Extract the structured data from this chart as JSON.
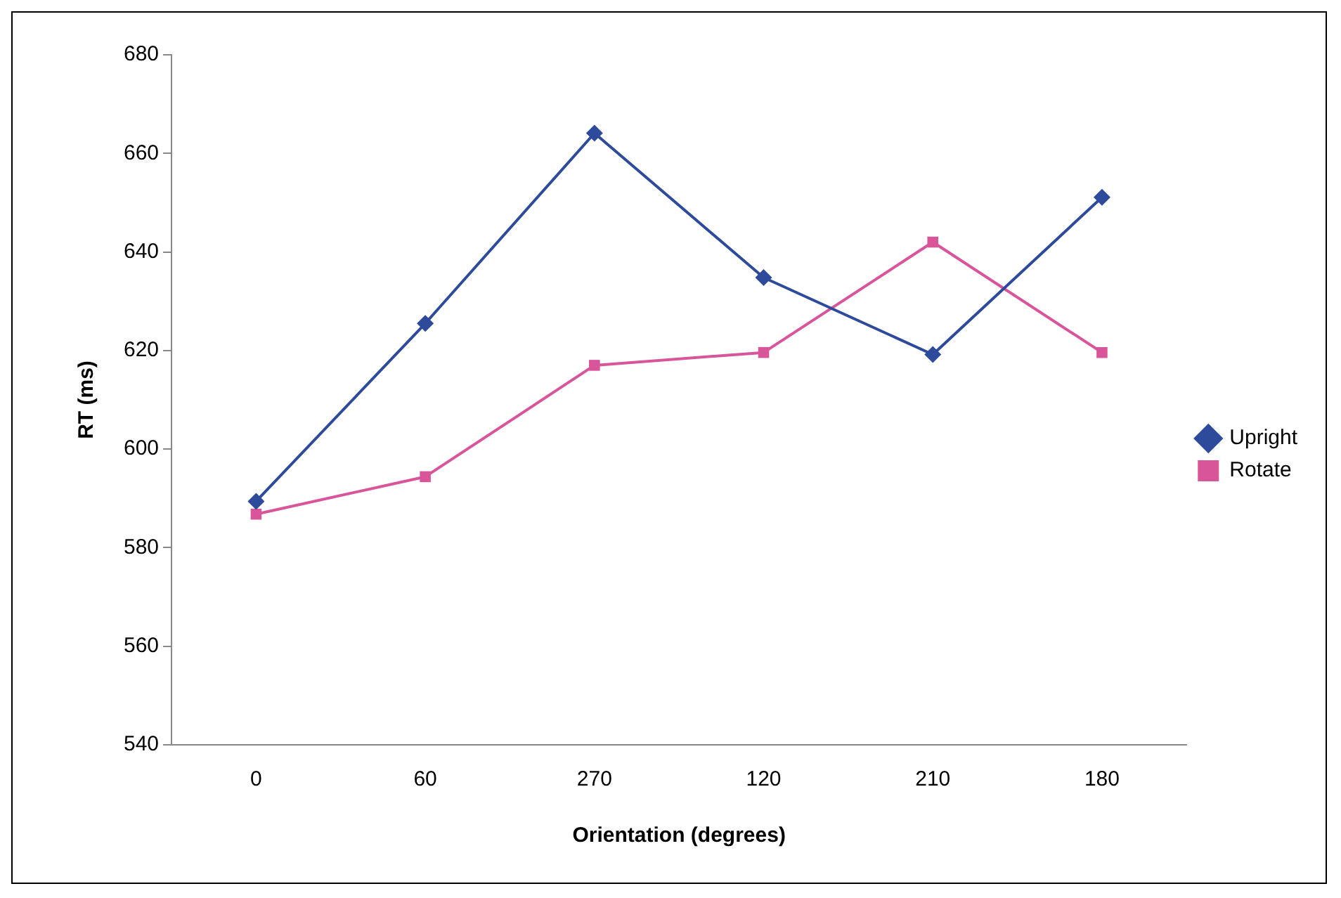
{
  "chart_data": {
    "type": "line",
    "xlabel": "Orientation (degrees)",
    "ylabel": "RT (ms)",
    "categories": [
      "0",
      "60",
      "270",
      "120",
      "210",
      "180"
    ],
    "series": [
      {
        "name": "Upright",
        "color": "#2e4a9a",
        "marker": "diamond",
        "values": [
          589.4,
          625.5,
          664.1,
          634.8,
          619.2,
          651.1
        ]
      },
      {
        "name": "Rotate",
        "color": "#d9559a",
        "marker": "square",
        "values": [
          586.8,
          594.4,
          617.0,
          619.6,
          642.0,
          619.6
        ]
      }
    ],
    "ylim": [
      540,
      680
    ],
    "yticks": [
      540,
      560,
      580,
      600,
      620,
      640,
      660,
      680
    ],
    "grid": false,
    "legend": "right",
    "line_style": "solid"
  }
}
